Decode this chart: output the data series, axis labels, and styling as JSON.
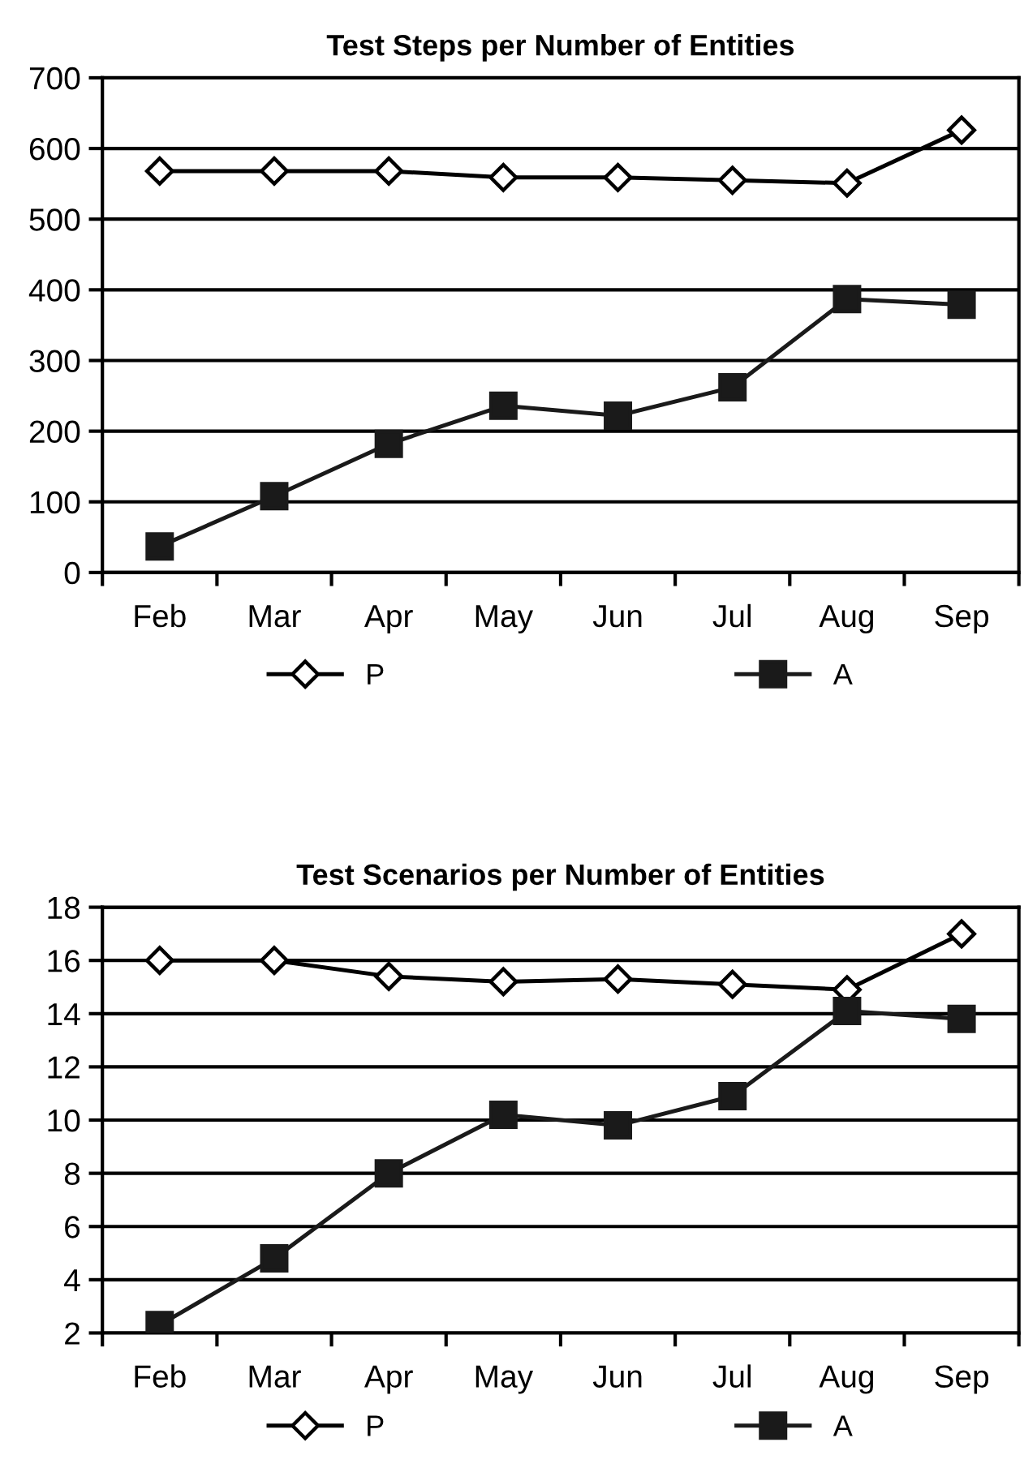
{
  "chart_data": [
    {
      "type": "line",
      "title": "Test Steps per Number of Entities",
      "categories": [
        "Feb",
        "Mar",
        "Apr",
        "May",
        "Jun",
        "Jul",
        "Aug",
        "Sep"
      ],
      "ylim": [
        0,
        700
      ],
      "yticks": [
        0,
        100,
        200,
        300,
        400,
        500,
        600,
        700
      ],
      "grid": "y",
      "legend": "bottom",
      "series": [
        {
          "name": "P",
          "color": "#000000",
          "marker": "diamond",
          "values": [
            568,
            568,
            568,
            559,
            559,
            555,
            551,
            626
          ]
        },
        {
          "name": "A",
          "color": "#1a1a1a",
          "marker": "square",
          "values": [
            37,
            108,
            182,
            236,
            222,
            262,
            387,
            379
          ]
        }
      ]
    },
    {
      "type": "line",
      "title": "Test Scenarios per Number of Entities",
      "categories": [
        "Feb",
        "Mar",
        "Apr",
        "May",
        "Jun",
        "Jul",
        "Aug",
        "Sep"
      ],
      "ylim": [
        2,
        18
      ],
      "yticks": [
        2,
        4,
        6,
        8,
        10,
        12,
        14,
        16,
        18
      ],
      "grid": "y",
      "legend": "bottom",
      "series": [
        {
          "name": "P",
          "color": "#000000",
          "marker": "diamond",
          "values": [
            16.0,
            16.0,
            15.4,
            15.2,
            15.3,
            15.1,
            14.9,
            17.0
          ]
        },
        {
          "name": "A",
          "color": "#1a1a1a",
          "marker": "square",
          "values": [
            2.3,
            4.8,
            8.0,
            10.2,
            9.8,
            10.9,
            14.1,
            13.8
          ]
        }
      ]
    }
  ]
}
